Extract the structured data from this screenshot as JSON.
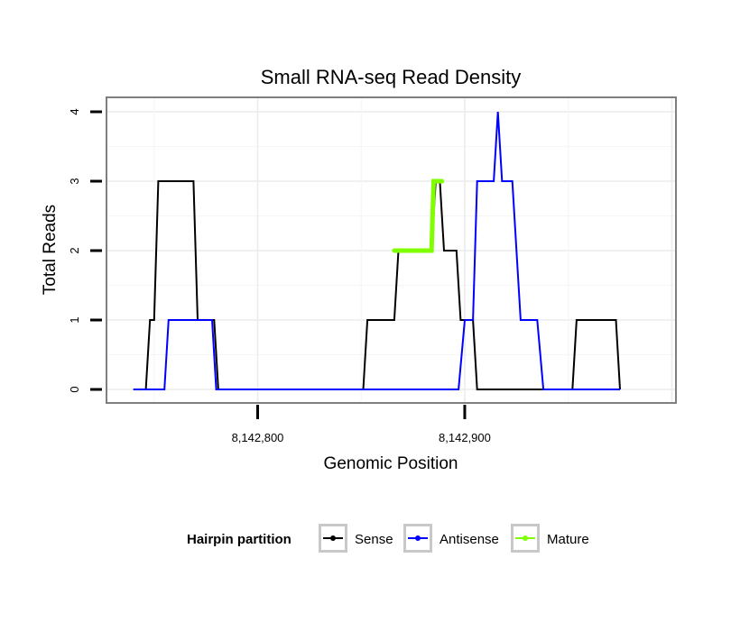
{
  "chart_data": {
    "type": "line",
    "title": "Small RNA-seq Read Density",
    "xlabel": "Genomic Position",
    "ylabel": "Total Reads",
    "xlim": [
      8142727,
      8143002
    ],
    "ylim": [
      0,
      4
    ],
    "x_ticks": [
      8142800,
      8142900
    ],
    "x_tick_labels": [
      "8,142,800",
      "8,142,900"
    ],
    "y_ticks": [
      0,
      1,
      2,
      3,
      4
    ],
    "y_tick_labels": [
      "0",
      "1",
      "2",
      "3",
      "4"
    ],
    "grid": true,
    "legend_position": "bottom",
    "legend_title": "Hairpin partition",
    "series": [
      {
        "name": "Sense",
        "color": "#000000",
        "points": [
          [
            8142740,
            0
          ],
          [
            8142746,
            0
          ],
          [
            8142748,
            1
          ],
          [
            8142750,
            1
          ],
          [
            8142752,
            3
          ],
          [
            8142769,
            3
          ],
          [
            8142771,
            1
          ],
          [
            8142779,
            1
          ],
          [
            8142781,
            0
          ],
          [
            8142851,
            0
          ],
          [
            8142853,
            1
          ],
          [
            8142866,
            1
          ],
          [
            8142868,
            2
          ],
          [
            8142884,
            2
          ],
          [
            8142886,
            3
          ],
          [
            8142888,
            3
          ],
          [
            8142890,
            2
          ],
          [
            8142896,
            2
          ],
          [
            8142898,
            1
          ],
          [
            8142904,
            1
          ],
          [
            8142906,
            0
          ],
          [
            8142952,
            0
          ],
          [
            8142954,
            1
          ],
          [
            8142973,
            1
          ],
          [
            8142975,
            0
          ]
        ]
      },
      {
        "name": "Antisense",
        "color": "#0000ff",
        "points": [
          [
            8142740,
            0
          ],
          [
            8142755,
            0
          ],
          [
            8142757,
            1
          ],
          [
            8142778,
            1
          ],
          [
            8142780,
            0
          ],
          [
            8142897,
            0
          ],
          [
            8142900,
            1
          ],
          [
            8142904,
            1
          ],
          [
            8142906,
            3
          ],
          [
            8142914,
            3
          ],
          [
            8142916,
            4
          ],
          [
            8142918,
            3
          ],
          [
            8142923,
            3
          ],
          [
            8142925,
            2
          ],
          [
            8142927,
            1
          ],
          [
            8142935,
            1
          ],
          [
            8142938,
            0
          ],
          [
            8142975,
            0
          ]
        ]
      },
      {
        "name": "Mature",
        "color": "#7fff00",
        "points": [
          [
            8142866,
            2
          ],
          [
            8142884,
            2
          ],
          [
            8142885,
            3
          ],
          [
            8142889,
            3
          ]
        ]
      }
    ]
  }
}
